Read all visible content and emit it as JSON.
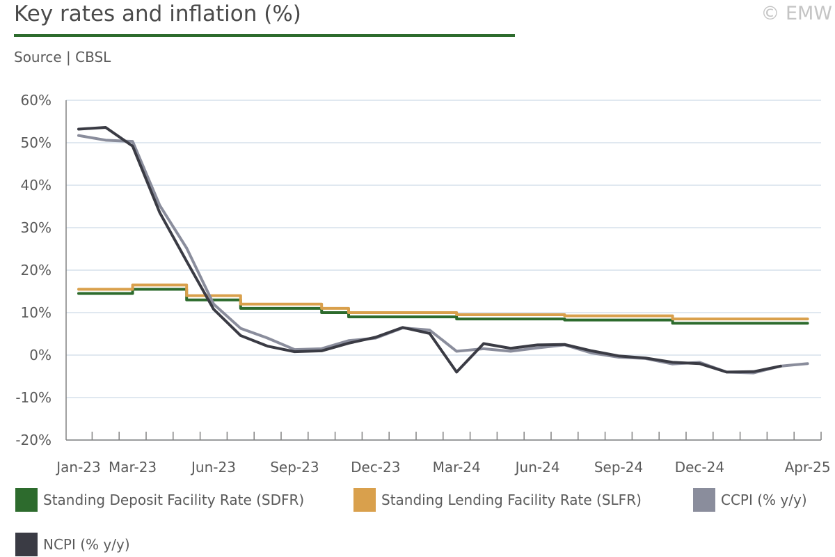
{
  "header": {
    "title": "Key rates and inflation (%)",
    "source": "Source | CBSL",
    "copyright": "© EMW"
  },
  "colors": {
    "sdfr": "#2d6b2d",
    "slfr": "#d9a04c",
    "ccpi": "#8a8d9c",
    "ncpi": "#3a3b44",
    "title_rule": "#2d6b2d",
    "grid": "#d6e0ec",
    "axis": "#808080"
  },
  "chart_data": {
    "type": "line",
    "title": "Key rates and inflation (%)",
    "x_tick_labels": [
      "Jan-23",
      "Mar-23",
      "Jun-23",
      "Sep-23",
      "Dec-23",
      "Mar-24",
      "Jun-24",
      "Sep-24",
      "Dec-24",
      "Apr-25"
    ],
    "x": [
      "Jan-23",
      "Feb-23",
      "Mar-23",
      "Apr-23",
      "May-23",
      "Jun-23",
      "Jul-23",
      "Aug-23",
      "Sep-23",
      "Oct-23",
      "Nov-23",
      "Dec-23",
      "Jan-24",
      "Feb-24",
      "Mar-24",
      "Apr-24",
      "May-24",
      "Jun-24",
      "Jul-24",
      "Aug-24",
      "Sep-24",
      "Oct-24",
      "Nov-24",
      "Dec-24",
      "Jan-25",
      "Feb-25",
      "Mar-25",
      "Apr-25"
    ],
    "ylim": [
      -20,
      60
    ],
    "y_ticks": [
      60,
      50,
      40,
      30,
      20,
      10,
      0,
      -10,
      -20
    ],
    "y_tick_labels": [
      "60%",
      "50%",
      "40%",
      "30%",
      "20%",
      "10%",
      "0%",
      "-10%",
      "-20%"
    ],
    "series": [
      {
        "name": "Standing Deposit Facility Rate (SDFR)",
        "key": "sdfr",
        "step": true,
        "values": [
          14.5,
          14.5,
          15.5,
          15.5,
          13.0,
          13.0,
          11.0,
          11.0,
          11.0,
          10.0,
          9.0,
          9.0,
          9.0,
          9.0,
          8.5,
          8.5,
          8.5,
          8.5,
          8.25,
          8.25,
          8.25,
          8.25,
          7.5,
          7.5,
          7.5,
          7.5,
          7.5,
          null
        ]
      },
      {
        "name": "Standing Lending Facility Rate (SLFR)",
        "key": "slfr",
        "step": true,
        "values": [
          15.5,
          15.5,
          16.5,
          16.5,
          14.0,
          14.0,
          12.0,
          12.0,
          12.0,
          11.0,
          10.0,
          10.0,
          10.0,
          10.0,
          9.5,
          9.5,
          9.5,
          9.5,
          9.25,
          9.25,
          9.25,
          9.25,
          8.5,
          8.5,
          8.5,
          8.5,
          8.5,
          null
        ]
      },
      {
        "name": "CCPI (% y/y)",
        "key": "ccpi",
        "step": false,
        "values": [
          51.7,
          50.6,
          50.3,
          35.3,
          25.2,
          12.0,
          6.3,
          4.0,
          1.3,
          1.5,
          3.4,
          4.0,
          6.4,
          5.9,
          0.9,
          1.5,
          0.9,
          1.7,
          2.4,
          0.5,
          -0.5,
          -0.8,
          -2.1,
          -1.7,
          -4.0,
          -4.2,
          -2.6,
          -2.0
        ]
      },
      {
        "name": "NCPI (% y/y)",
        "key": "ncpi",
        "step": false,
        "values": [
          53.2,
          53.6,
          49.2,
          33.6,
          22.1,
          10.8,
          4.6,
          2.1,
          0.8,
          1.0,
          2.8,
          4.2,
          6.5,
          5.1,
          -4.0,
          2.7,
          1.6,
          2.4,
          2.5,
          1.0,
          -0.2,
          -0.7,
          -1.7,
          -2.0,
          -4.0,
          -3.9,
          -2.6,
          null
        ]
      }
    ],
    "grid": true,
    "legend_position": "bottom"
  }
}
